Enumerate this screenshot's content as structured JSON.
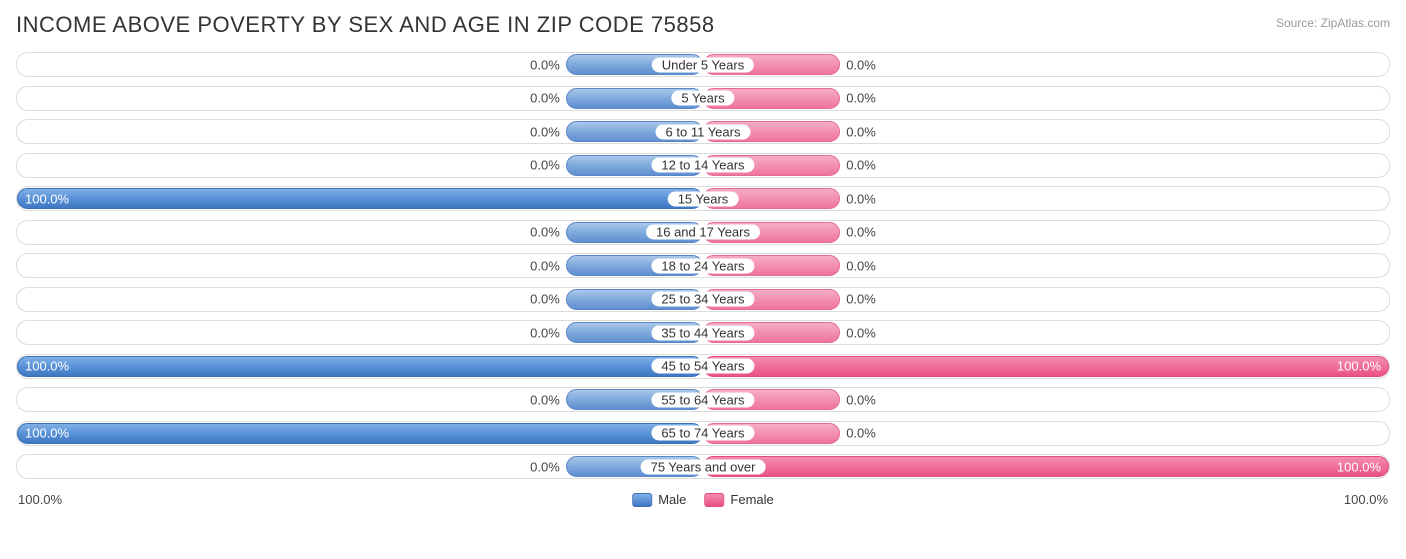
{
  "title": "INCOME ABOVE POVERTY BY SEX AND AGE IN ZIP CODE 75858",
  "source": "Source: ZipAtlas.com",
  "chart": {
    "type": "diverging-bar",
    "male_color_stub": "#a9c7ea",
    "male_color_full": "#5a92d8",
    "female_color_stub": "#f6acc6",
    "female_color_full": "#ef6f9a",
    "track_border": "#dcdcdc",
    "background": "#ffffff",
    "stub_width_pct": 20,
    "axis_left": "100.0%",
    "axis_right": "100.0%",
    "legend": {
      "male": "Male",
      "female": "Female"
    },
    "rows": [
      {
        "label": "Under 5 Years",
        "male": 0.0,
        "female": 0.0
      },
      {
        "label": "5 Years",
        "male": 0.0,
        "female": 0.0
      },
      {
        "label": "6 to 11 Years",
        "male": 0.0,
        "female": 0.0
      },
      {
        "label": "12 to 14 Years",
        "male": 0.0,
        "female": 0.0
      },
      {
        "label": "15 Years",
        "male": 100.0,
        "female": 0.0
      },
      {
        "label": "16 and 17 Years",
        "male": 0.0,
        "female": 0.0
      },
      {
        "label": "18 to 24 Years",
        "male": 0.0,
        "female": 0.0
      },
      {
        "label": "25 to 34 Years",
        "male": 0.0,
        "female": 0.0
      },
      {
        "label": "35 to 44 Years",
        "male": 0.0,
        "female": 0.0
      },
      {
        "label": "45 to 54 Years",
        "male": 100.0,
        "female": 100.0
      },
      {
        "label": "55 to 64 Years",
        "male": 0.0,
        "female": 0.0
      },
      {
        "label": "65 to 74 Years",
        "male": 100.0,
        "female": 0.0
      },
      {
        "label": "75 Years and over",
        "male": 0.0,
        "female": 100.0
      }
    ]
  }
}
